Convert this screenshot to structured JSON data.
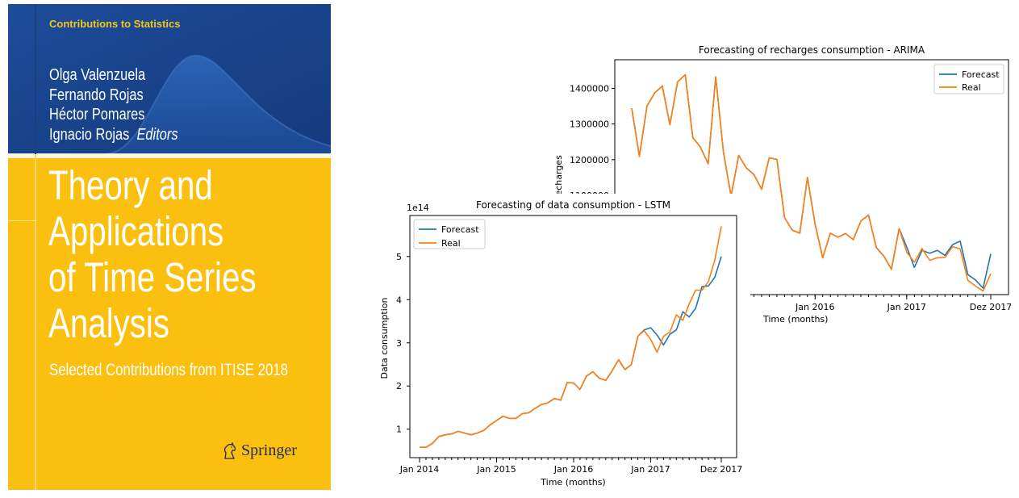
{
  "cover": {
    "series": "Contributions to Statistics",
    "editors": [
      "Olga Valenzuela",
      "Fernando Rojas",
      "Héctor Pomares",
      "Ignacio Rojas"
    ],
    "editors_role": "Editors",
    "title_lines": [
      "Theory and",
      "Applications",
      "of Time Series",
      "Analysis"
    ],
    "subtitle": "Selected Contributions from ITISE 2018",
    "publisher": "Springer",
    "colors": {
      "top": "#1f4f9d",
      "bottom": "#fbc00f"
    }
  },
  "chart_data": [
    {
      "type": "line",
      "title": "Forecasting of recharges consumption - ARIMA",
      "xlabel": "Time (months)",
      "ylabel": "recharges",
      "x_ticks": [
        "Jan 2016",
        "Jan 2017",
        "Dez 2017"
      ],
      "y_ticks": [
        1100000,
        1200000,
        1300000,
        1400000
      ],
      "legend": "top-right",
      "series": [
        {
          "name": "Forecast",
          "color": "#1f77b4",
          "values": [
            1344000,
            1209000,
            1350000,
            1387000,
            1406000,
            1298000,
            1418000,
            1438000,
            1262000,
            1235000,
            1188000,
            1432000,
            1222000,
            1098000,
            1212000,
            1177000,
            1158000,
            1117000,
            1205000,
            1201000,
            1038000,
            1003000,
            994000,
            1150000,
            1020000,
            925000,
            994000,
            983000,
            993000,
            976000,
            1028000,
            1045000,
            954000,
            930000,
            893000,
            1007000,
            955000,
            898000,
            946000,
            938000,
            946000,
            932000,
            962000,
            972000,
            878000,
            863000,
            840000,
            936000
          ]
        },
        {
          "name": "Real",
          "color": "#ff7f0e",
          "values": [
            1344000,
            1209000,
            1350000,
            1387000,
            1406000,
            1298000,
            1418000,
            1438000,
            1262000,
            1235000,
            1188000,
            1432000,
            1222000,
            1098000,
            1212000,
            1177000,
            1158000,
            1117000,
            1205000,
            1201000,
            1038000,
            1003000,
            994000,
            1150000,
            1020000,
            925000,
            994000,
            983000,
            993000,
            976000,
            1028000,
            1045000,
            954000,
            930000,
            893000,
            1007000,
            941000,
            913000,
            951000,
            918000,
            925000,
            926000,
            956000,
            950000,
            862000,
            846000,
            832000,
            881000
          ]
        }
      ]
    },
    {
      "type": "line",
      "title": "Forecasting of data consumption - LSTM",
      "xlabel": "Time (months)",
      "ylabel": "Data consumption",
      "y_scale_label": "1e14",
      "x_ticks": [
        "Jan 2014",
        "Jan 2015",
        "Jan 2016",
        "Jan 2017",
        "Dez 2017"
      ],
      "y_ticks": [
        1,
        2,
        3,
        4,
        5
      ],
      "legend": "top-left",
      "series": [
        {
          "name": "Forecast",
          "color": "#1f77b4",
          "values": [
            0.58,
            0.58,
            0.67,
            0.83,
            0.87,
            0.89,
            0.95,
            0.91,
            0.87,
            0.91,
            0.97,
            1.1,
            1.2,
            1.3,
            1.25,
            1.25,
            1.36,
            1.38,
            1.48,
            1.57,
            1.61,
            1.71,
            1.67,
            2.08,
            2.07,
            1.92,
            2.23,
            2.33,
            2.18,
            2.13,
            2.35,
            2.61,
            2.38,
            2.5,
            3.15,
            3.3,
            3.35,
            3.18,
            2.95,
            3.2,
            3.3,
            3.72,
            3.6,
            3.8,
            4.3,
            4.32,
            4.52,
            5.0
          ]
        },
        {
          "name": "Real",
          "color": "#ff7f0e",
          "values": [
            0.58,
            0.58,
            0.67,
            0.83,
            0.87,
            0.89,
            0.95,
            0.91,
            0.87,
            0.91,
            0.97,
            1.1,
            1.2,
            1.3,
            1.25,
            1.25,
            1.36,
            1.38,
            1.48,
            1.57,
            1.61,
            1.71,
            1.67,
            2.08,
            2.07,
            1.92,
            2.23,
            2.33,
            2.18,
            2.13,
            2.35,
            2.61,
            2.38,
            2.5,
            3.15,
            3.28,
            3.08,
            2.78,
            3.15,
            3.25,
            3.65,
            3.52,
            3.9,
            4.22,
            4.22,
            4.42,
            4.92,
            5.7
          ]
        }
      ]
    }
  ]
}
